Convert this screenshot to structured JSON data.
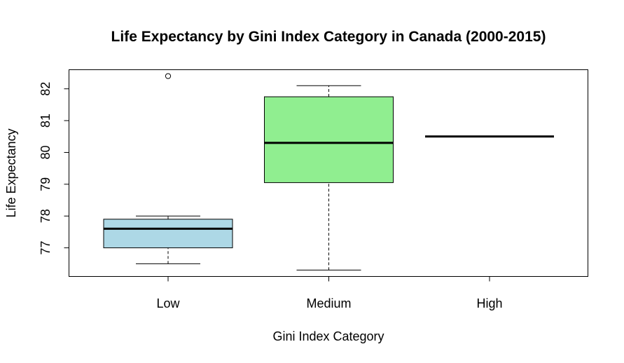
{
  "chart_data": {
    "type": "boxplot",
    "title": "Life Expectancy by Gini Index Category in Canada (2000-2015)",
    "xlabel": "Gini Index Category",
    "ylabel": "Life Expectancy",
    "ylim": [
      76.1,
      82.6
    ],
    "yticks": [
      77,
      78,
      79,
      80,
      81,
      82
    ],
    "categories": [
      "Low",
      "Medium",
      "High"
    ],
    "boxes": [
      {
        "category": "Low",
        "whisker_low": 76.5,
        "q1": 77.0,
        "median": 77.6,
        "q3": 77.9,
        "whisker_high": 78.0,
        "outliers": [
          82.4
        ],
        "color": "#add8e6"
      },
      {
        "category": "Medium",
        "whisker_low": 76.3,
        "q1": 79.05,
        "median": 80.3,
        "q3": 81.75,
        "whisker_high": 82.1,
        "outliers": [],
        "color": "#90ee90"
      },
      {
        "category": "High",
        "whisker_low": 80.5,
        "q1": 80.5,
        "median": 80.5,
        "q3": 80.5,
        "whisker_high": 80.5,
        "outliers": [],
        "color": "#f4a3a3"
      }
    ],
    "grid": false,
    "legend": "none"
  }
}
